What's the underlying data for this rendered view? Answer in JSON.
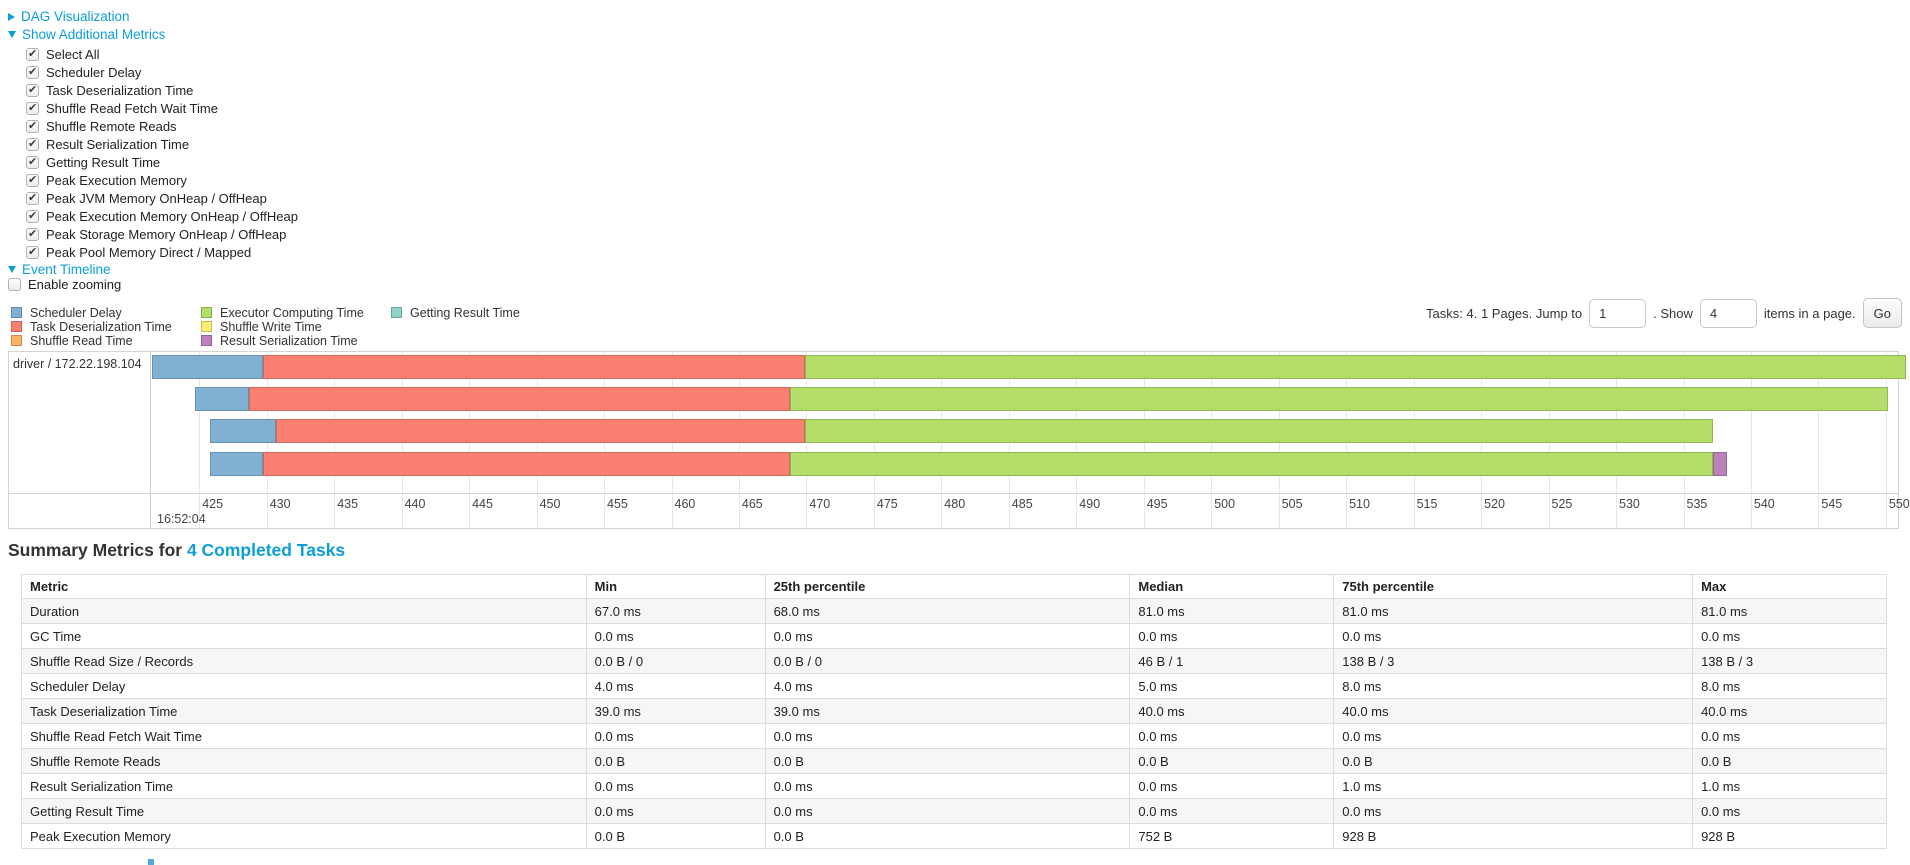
{
  "colors": {
    "link": "#0c9ed9",
    "scheduler_delay": "#80B1D3",
    "task_deserialization": "#FB8072",
    "shuffle_read": "#FDB462",
    "executor_computing": "#B3DE69",
    "shuffle_write": "#FFED6F",
    "result_serialization": "#BC80BD",
    "getting_result": "#8DD3C7"
  },
  "nav": {
    "dag_toggle": "DAG Visualization",
    "metrics_toggle": "Show Additional Metrics",
    "event_timeline_toggle": "Event Timeline",
    "enable_zooming_label": "Enable zooming",
    "enable_zooming_checked": false,
    "metric_checkboxes": [
      {
        "label": "Select All",
        "checked": true
      },
      {
        "label": "Scheduler Delay",
        "checked": true
      },
      {
        "label": "Task Deserialization Time",
        "checked": true
      },
      {
        "label": "Shuffle Read Fetch Wait Time",
        "checked": true
      },
      {
        "label": "Shuffle Remote Reads",
        "checked": true
      },
      {
        "label": "Result Serialization Time",
        "checked": true
      },
      {
        "label": "Getting Result Time",
        "checked": true
      },
      {
        "label": "Peak Execution Memory",
        "checked": true
      },
      {
        "label": "Peak JVM Memory OnHeap / OffHeap",
        "checked": true
      },
      {
        "label": "Peak Execution Memory OnHeap / OffHeap",
        "checked": true
      },
      {
        "label": "Peak Storage Memory OnHeap / OffHeap",
        "checked": true
      },
      {
        "label": "Peak Pool Memory Direct / Mapped",
        "checked": true
      }
    ]
  },
  "legend": {
    "columns": [
      [
        "Scheduler Delay",
        "Task Deserialization Time",
        "Shuffle Read Time"
      ],
      [
        "Executor Computing Time",
        "Shuffle Write Time",
        "Result Serialization Time"
      ],
      [
        "Getting Result Time"
      ]
    ]
  },
  "pagination": {
    "tasks_text": "Tasks: 4. 1 Pages. Jump to",
    "jump_value": "1",
    "show_text": ". Show",
    "show_value": "4",
    "items_text": "items in a page.",
    "go_label": "Go"
  },
  "chart_data": {
    "type": "timeline",
    "group": "driver / 172.22.198.104",
    "x_axis": {
      "min": 421.5,
      "max": 550.9,
      "tick_start": 425,
      "tick_end": 550,
      "tick_step": 5,
      "major_label": "16:52:04"
    },
    "series": {
      "Scheduler Delay": "#80B1D3",
      "Task Deserialization Time": "#FB8072",
      "Shuffle Read Time": "#FDB462",
      "Executor Computing Time": "#B3DE69",
      "Shuffle Write Time": "#FFED6F",
      "Result Serialization Time": "#BC80BD",
      "Getting Result Time": "#8DD3C7"
    },
    "tasks": [
      {
        "segments": [
          {
            "series": "Scheduler Delay",
            "start": 421.5,
            "end": 429.7
          },
          {
            "series": "Task Deserialization Time",
            "start": 429.7,
            "end": 469.9
          },
          {
            "series": "Executor Computing Time",
            "start": 469.9,
            "end": 551.5
          }
        ]
      },
      {
        "segments": [
          {
            "series": "Scheduler Delay",
            "start": 424.7,
            "end": 428.7
          },
          {
            "series": "Task Deserialization Time",
            "start": 428.7,
            "end": 468.8
          },
          {
            "series": "Executor Computing Time",
            "start": 468.8,
            "end": 550.2
          }
        ]
      },
      {
        "segments": [
          {
            "series": "Scheduler Delay",
            "start": 425.8,
            "end": 430.7
          },
          {
            "series": "Task Deserialization Time",
            "start": 430.7,
            "end": 469.9
          },
          {
            "series": "Executor Computing Time",
            "start": 469.9,
            "end": 537.2
          }
        ]
      },
      {
        "segments": [
          {
            "series": "Scheduler Delay",
            "start": 425.8,
            "end": 429.7
          },
          {
            "series": "Task Deserialization Time",
            "start": 429.7,
            "end": 468.8
          },
          {
            "series": "Executor Computing Time",
            "start": 468.8,
            "end": 537.2
          },
          {
            "series": "Result Serialization Time",
            "start": 537.2,
            "end": 538.2
          }
        ]
      }
    ]
  },
  "summary": {
    "title_prefix": "Summary Metrics for ",
    "title_link": "4 Completed Tasks",
    "table": {
      "headers": [
        "Metric",
        "Min",
        "25th percentile",
        "Median",
        "75th percentile",
        "Max"
      ],
      "rows": [
        [
          "Duration",
          "67.0 ms",
          "68.0 ms",
          "81.0 ms",
          "81.0 ms",
          "81.0 ms"
        ],
        [
          "GC Time",
          "0.0 ms",
          "0.0 ms",
          "0.0 ms",
          "0.0 ms",
          "0.0 ms"
        ],
        [
          "Shuffle Read Size / Records",
          "0.0 B / 0",
          "0.0 B / 0",
          "46 B / 1",
          "138 B / 3",
          "138 B / 3"
        ],
        [
          "Scheduler Delay",
          "4.0 ms",
          "4.0 ms",
          "5.0 ms",
          "8.0 ms",
          "8.0 ms"
        ],
        [
          "Task Deserialization Time",
          "39.0 ms",
          "39.0 ms",
          "40.0 ms",
          "40.0 ms",
          "40.0 ms"
        ],
        [
          "Shuffle Read Fetch Wait Time",
          "0.0 ms",
          "0.0 ms",
          "0.0 ms",
          "0.0 ms",
          "0.0 ms"
        ],
        [
          "Shuffle Remote Reads",
          "0.0 B",
          "0.0 B",
          "0.0 B",
          "0.0 B",
          "0.0 B"
        ],
        [
          "Result Serialization Time",
          "0.0 ms",
          "0.0 ms",
          "0.0 ms",
          "1.0 ms",
          "1.0 ms"
        ],
        [
          "Getting Result Time",
          "0.0 ms",
          "0.0 ms",
          "0.0 ms",
          "0.0 ms",
          "0.0 ms"
        ],
        [
          "Peak Execution Memory",
          "0.0 B",
          "0.0 B",
          "752 B",
          "928 B",
          "928 B"
        ]
      ]
    }
  }
}
